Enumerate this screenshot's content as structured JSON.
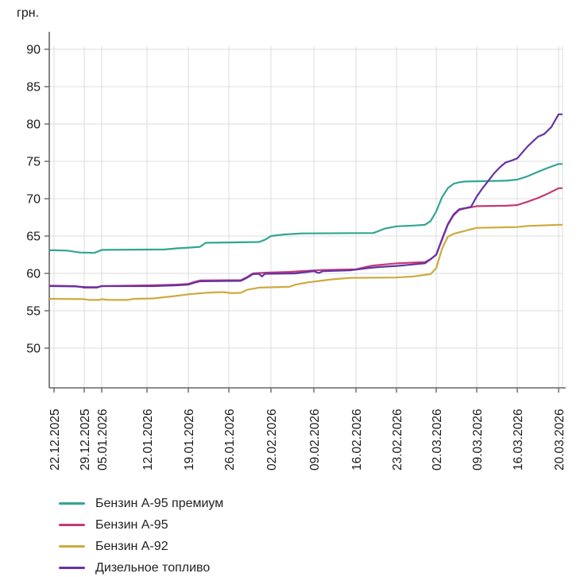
{
  "chart_data": {
    "type": "line",
    "title": "",
    "unit_label": "грн.",
    "grid": true,
    "legend_position": "bottom-left",
    "y_axis": {
      "min": 50,
      "max": 90,
      "tick_step": 5,
      "ticks": [
        50,
        55,
        60,
        65,
        70,
        75,
        80,
        85,
        90
      ]
    },
    "x_axis": {
      "tick_labels": [
        "22.12.2025",
        "29.12.2025",
        "05.01.2026",
        "12.01.2026",
        "19.01.2026",
        "26.01.2026",
        "02.02.2026",
        "09.02.2026",
        "16.02.2026",
        "23.02.2026",
        "02.03.2026",
        "09.03.2026",
        "16.03.2026",
        "20.03.2026"
      ],
      "tick_days": [
        0,
        7,
        14,
        21,
        28,
        35,
        42,
        49,
        56,
        63,
        70,
        77,
        84,
        88
      ]
    },
    "series": [
      {
        "name": "Бензин А-95 премиум",
        "color": "#31A693",
        "points": [
          [
            0,
            63.1
          ],
          [
            3,
            63.05
          ],
          [
            6,
            62.8
          ],
          [
            11,
            62.75
          ],
          [
            13,
            63.0
          ],
          [
            14,
            63.15
          ],
          [
            24,
            63.2
          ],
          [
            26,
            63.35
          ],
          [
            28,
            63.45
          ],
          [
            30,
            63.55
          ],
          [
            31,
            64.1
          ],
          [
            40,
            64.2
          ],
          [
            41,
            64.5
          ],
          [
            42,
            65.0
          ],
          [
            44,
            65.2
          ],
          [
            47,
            65.35
          ],
          [
            59,
            65.4
          ],
          [
            61,
            66.0
          ],
          [
            63,
            66.3
          ],
          [
            66,
            66.4
          ],
          [
            68,
            66.5
          ],
          [
            69,
            67.0
          ],
          [
            70,
            68.3
          ],
          [
            71,
            70.2
          ],
          [
            72,
            71.4
          ],
          [
            73,
            72.0
          ],
          [
            74,
            72.2
          ],
          [
            75,
            72.3
          ],
          [
            82,
            72.4
          ],
          [
            84,
            72.55
          ],
          [
            85,
            73.0
          ],
          [
            86,
            73.6
          ],
          [
            87,
            74.15
          ],
          [
            88,
            74.65
          ]
        ]
      },
      {
        "name": "Бензин А-95",
        "color": "#C23A76",
        "points": [
          [
            0,
            58.35
          ],
          [
            5,
            58.3
          ],
          [
            7,
            58.1
          ],
          [
            12,
            58.1
          ],
          [
            14,
            58.3
          ],
          [
            22,
            58.4
          ],
          [
            26,
            58.5
          ],
          [
            28,
            58.6
          ],
          [
            29,
            58.85
          ],
          [
            30,
            59.05
          ],
          [
            37,
            59.1
          ],
          [
            38,
            59.5
          ],
          [
            39,
            60.0
          ],
          [
            41,
            60.1
          ],
          [
            45,
            60.2
          ],
          [
            48,
            60.35
          ],
          [
            50,
            60.45
          ],
          [
            56,
            60.55
          ],
          [
            58,
            60.9
          ],
          [
            59,
            61.05
          ],
          [
            61,
            61.2
          ],
          [
            63,
            61.35
          ],
          [
            66,
            61.45
          ],
          [
            68,
            61.5
          ],
          [
            69,
            61.9
          ],
          [
            70,
            62.5
          ],
          [
            71,
            64.5
          ],
          [
            72,
            66.5
          ],
          [
            73,
            67.8
          ],
          [
            74,
            68.5
          ],
          [
            75,
            68.7
          ],
          [
            77,
            69.0
          ],
          [
            82,
            69.05
          ],
          [
            84,
            69.15
          ],
          [
            85,
            69.6
          ],
          [
            86,
            70.1
          ],
          [
            87,
            70.7
          ],
          [
            88,
            71.4
          ]
        ]
      },
      {
        "name": "Бензин А-92",
        "color": "#CCAB40",
        "points": [
          [
            0,
            56.6
          ],
          [
            7,
            56.55
          ],
          [
            9,
            56.45
          ],
          [
            13,
            56.45
          ],
          [
            14,
            56.55
          ],
          [
            15,
            56.45
          ],
          [
            18,
            56.45
          ],
          [
            19,
            56.6
          ],
          [
            22,
            56.65
          ],
          [
            25,
            56.9
          ],
          [
            27,
            57.1
          ],
          [
            28,
            57.2
          ],
          [
            31,
            57.4
          ],
          [
            34,
            57.5
          ],
          [
            35.5,
            57.35
          ],
          [
            37,
            57.4
          ],
          [
            38,
            57.8
          ],
          [
            40,
            58.1
          ],
          [
            45,
            58.2
          ],
          [
            46,
            58.5
          ],
          [
            48,
            58.8
          ],
          [
            50,
            59.0
          ],
          [
            52,
            59.2
          ],
          [
            55,
            59.4
          ],
          [
            63,
            59.45
          ],
          [
            66,
            59.6
          ],
          [
            69,
            59.9
          ],
          [
            70,
            60.7
          ],
          [
            71,
            63.3
          ],
          [
            72,
            64.9
          ],
          [
            73,
            65.3
          ],
          [
            74,
            65.5
          ],
          [
            75,
            65.7
          ],
          [
            76,
            65.9
          ],
          [
            77,
            66.1
          ],
          [
            84,
            66.2
          ],
          [
            85,
            66.35
          ],
          [
            88,
            66.5
          ]
        ]
      },
      {
        "name": "Дизельное топливо",
        "color": "#6632A6",
        "points": [
          [
            0,
            58.3
          ],
          [
            5,
            58.25
          ],
          [
            8,
            58.15
          ],
          [
            12,
            58.15
          ],
          [
            14,
            58.3
          ],
          [
            22,
            58.3
          ],
          [
            26,
            58.4
          ],
          [
            28,
            58.5
          ],
          [
            29,
            58.75
          ],
          [
            30,
            58.95
          ],
          [
            37,
            59.0
          ],
          [
            38,
            59.4
          ],
          [
            39,
            59.9
          ],
          [
            40,
            59.95
          ],
          [
            40.5,
            59.6
          ],
          [
            41,
            59.95
          ],
          [
            46,
            60.0
          ],
          [
            48,
            60.2
          ],
          [
            49,
            60.3
          ],
          [
            49.8,
            60.05
          ],
          [
            50.5,
            60.3
          ],
          [
            55,
            60.4
          ],
          [
            58,
            60.7
          ],
          [
            60,
            60.85
          ],
          [
            63,
            61.0
          ],
          [
            66,
            61.2
          ],
          [
            68,
            61.35
          ],
          [
            69,
            61.9
          ],
          [
            70,
            62.5
          ],
          [
            71,
            64.6
          ],
          [
            72,
            66.6
          ],
          [
            73,
            67.9
          ],
          [
            74,
            68.6
          ],
          [
            75,
            68.75
          ],
          [
            76,
            68.9
          ],
          [
            77,
            70.3
          ],
          [
            78,
            71.4
          ],
          [
            79,
            72.4
          ],
          [
            80,
            73.4
          ],
          [
            81,
            74.2
          ],
          [
            82,
            74.85
          ],
          [
            83,
            75.1
          ],
          [
            84,
            75.4
          ],
          [
            85,
            77.0
          ],
          [
            86,
            78.3
          ],
          [
            86.6,
            78.65
          ],
          [
            87.3,
            79.6
          ],
          [
            88,
            81.3
          ]
        ]
      }
    ],
    "colors": {
      "grid": "#DCDCDC",
      "axis": "#666666",
      "tick_text": "#1A1A1A"
    }
  }
}
